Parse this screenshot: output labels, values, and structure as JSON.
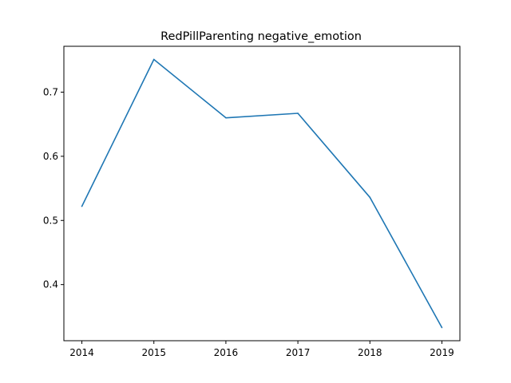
{
  "chart_data": {
    "type": "line",
    "title": "RedPillParenting negative_emotion",
    "xlabel": "",
    "ylabel": "",
    "x": [
      2014,
      2015,
      2016,
      2017,
      2018,
      2019
    ],
    "series": [
      {
        "values": [
          0.522,
          0.751,
          0.66,
          0.667,
          0.536,
          0.333
        ],
        "color": "#1f77b4"
      }
    ],
    "xticks": [
      "2014",
      "2015",
      "2016",
      "2017",
      "2018",
      "2019"
    ],
    "yticks": [
      "0.4",
      "0.5",
      "0.6",
      "0.7"
    ],
    "xlim": [
      2013.75,
      2019.25
    ],
    "ylim": [
      0.3125,
      0.7715
    ],
    "grid": false,
    "legend": "none"
  }
}
